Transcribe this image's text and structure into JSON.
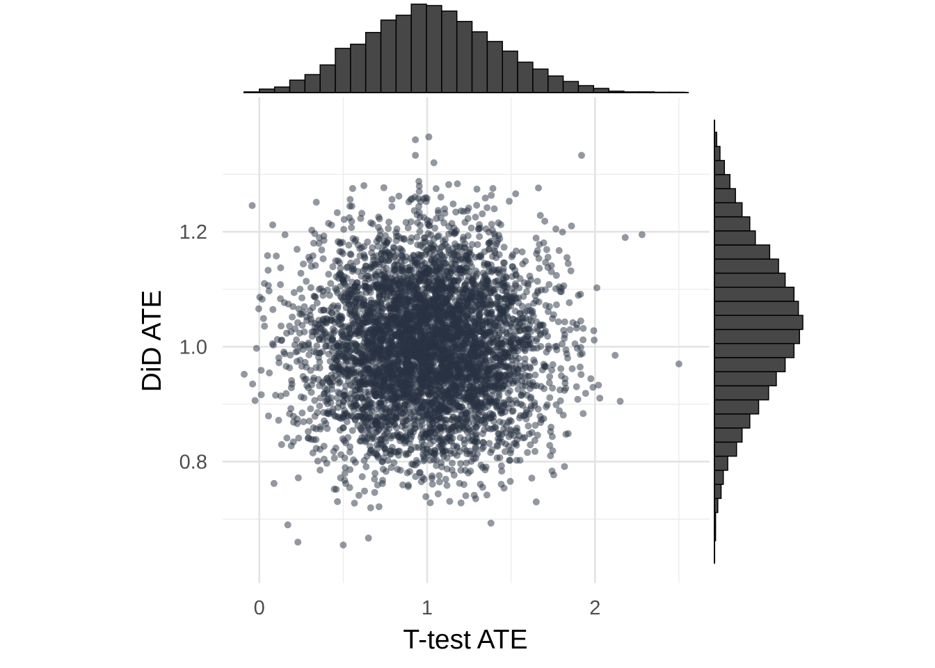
{
  "chart_data": {
    "type": "scatter",
    "title": "",
    "xlabel": "T-test ATE",
    "ylabel": "DiD ATE",
    "xlim": [
      -0.09,
      2.55
    ],
    "ylim": [
      0.625,
      1.395
    ],
    "x_ticks": [
      {
        "value": 0,
        "label": "0"
      },
      {
        "value": 1,
        "label": "1"
      },
      {
        "value": 2,
        "label": "2"
      }
    ],
    "x_minor_gridlines": [
      0.5,
      1.5,
      2.5
    ],
    "y_ticks": [
      {
        "value": 0.8,
        "label": "0.8"
      },
      {
        "value": 1.0,
        "label": "1.0"
      },
      {
        "value": 1.2,
        "label": "1.2"
      }
    ],
    "y_minor_gridlines": [
      0.7,
      0.9,
      1.1,
      1.3
    ],
    "grid": true,
    "point_color": "#283142",
    "point_opacity": 0.5,
    "generated_cloud": {
      "n": 5000,
      "x_mean": 1.0,
      "x_sd": 0.35,
      "y_mean": 1.0,
      "y_sd": 0.1
    },
    "notable_points": [
      {
        "x": 0.93,
        "y": 1.36
      },
      {
        "x": 1.01,
        "y": 1.365
      },
      {
        "x": 0.93,
        "y": 1.333
      },
      {
        "x": 1.04,
        "y": 1.32
      },
      {
        "x": 1.92,
        "y": 1.333
      },
      {
        "x": 2.28,
        "y": 1.195
      },
      {
        "x": 2.18,
        "y": 1.19
      },
      {
        "x": 2.5,
        "y": 0.97
      },
      {
        "x": 2.12,
        "y": 0.985
      },
      {
        "x": 2.15,
        "y": 0.905
      },
      {
        "x": -0.09,
        "y": 0.952
      },
      {
        "x": -0.04,
        "y": 0.935
      },
      {
        "x": 0.5,
        "y": 0.655
      },
      {
        "x": 0.23,
        "y": 0.66
      },
      {
        "x": 0.08,
        "y": 1.212
      },
      {
        "x": 1.65,
        "y": 0.73
      },
      {
        "x": 1.38,
        "y": 0.693
      },
      {
        "x": 0.17,
        "y": 0.69
      },
      {
        "x": 0.03,
        "y": 1.11
      },
      {
        "x": 0.65,
        "y": 0.667
      },
      {
        "x": 1.86,
        "y": 1.21
      }
    ],
    "marginal_x": {
      "bin_start": -0.09,
      "bin_width": 0.0905,
      "counts": [
        1,
        5,
        8,
        18,
        26,
        40,
        64,
        70,
        87,
        105,
        112,
        128,
        126,
        118,
        103,
        88,
        74,
        60,
        44,
        34,
        24,
        16,
        10,
        6,
        2,
        1,
        1,
        0.5,
        0.5
      ]
    },
    "marginal_y": {
      "bin_start": 0.6625,
      "bin_width": 0.0245,
      "counts": [
        1,
        1,
        3,
        6,
        8,
        12,
        20,
        25,
        32,
        40,
        49,
        56,
        64,
        72,
        77,
        80,
        76,
        72,
        64,
        58,
        50,
        37,
        32,
        25,
        19,
        14,
        9,
        5,
        2
      ]
    },
    "bar_color": "#474747",
    "bar_outline": "#000000"
  }
}
